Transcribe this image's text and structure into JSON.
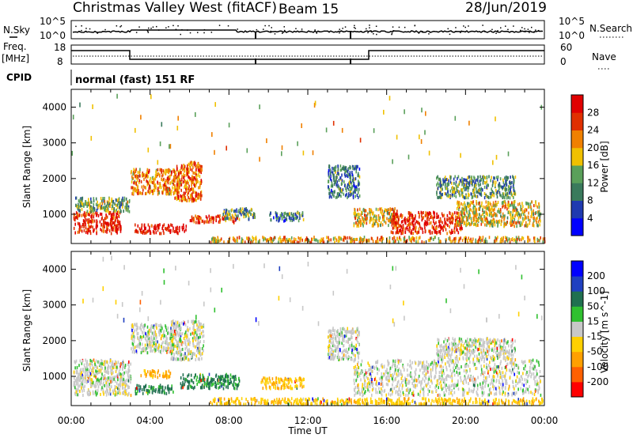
{
  "header": {
    "station": "Christmas Valley West (fitACF)",
    "beam": "Beam 15",
    "date": "28/Jun/2019"
  },
  "left_labels": {
    "nsky": "N.Sky",
    "freq": "Freq.",
    "freq_unit": "[MHz]",
    "cpid": "CPID"
  },
  "right_labels": {
    "nsearch": "N.Search",
    "nave": "Nave"
  },
  "noise_panel": {
    "left_ticks": [
      "10^5",
      "10^0"
    ],
    "right_ticks": [
      "10^5",
      "10^0"
    ]
  },
  "freq_panel": {
    "left_ticks": [
      "18",
      "8"
    ],
    "right_ticks": [
      "60",
      "0"
    ]
  },
  "cpid_text": "normal (fast) 151 RF",
  "colors": {
    "power": [
      "#0000ff",
      "#1f3ab0",
      "#3a7a5c",
      "#5aa05a",
      "#f0c000",
      "#f08000",
      "#e03000",
      "#e00000"
    ],
    "velocity": [
      "#ff0000",
      "#ff6000",
      "#ffa000",
      "#ffd000",
      "#c8c8c8",
      "#30c030",
      "#207050",
      "#2040c0",
      "#0000ff"
    ]
  },
  "chart_data": [
    {
      "type": "heatmap",
      "title": "Power",
      "ylabel": "Slant Range [km]",
      "xlabel": "Time UT",
      "xlim": [
        "00:00",
        "24:00"
      ],
      "ylim": [
        180,
        4500
      ],
      "xticks": [
        "00:00",
        "04:00",
        "08:00",
        "12:00",
        "16:00",
        "20:00",
        "00:00"
      ],
      "yticks": [
        1000,
        2000,
        3000,
        4000
      ],
      "colorbar": {
        "label": "Power [dB]",
        "ticks": [
          4,
          8,
          12,
          16,
          20,
          24,
          28
        ]
      },
      "regions": [
        {
          "t0": 0.1,
          "t1": 2.5,
          "r0": 500,
          "r1": 1100,
          "level": 28
        },
        {
          "t0": 0.2,
          "t1": 3.0,
          "r0": 1100,
          "r1": 1500,
          "level": 14
        },
        {
          "t0": 3.2,
          "t1": 5.8,
          "r0": 500,
          "r1": 750,
          "level": 30
        },
        {
          "t0": 3.0,
          "t1": 5.5,
          "r0": 1600,
          "r1": 2300,
          "level": 22
        },
        {
          "t0": 5.2,
          "t1": 6.6,
          "r0": 1400,
          "r1": 2500,
          "level": 24
        },
        {
          "t0": 6.0,
          "t1": 8.5,
          "r0": 800,
          "r1": 1000,
          "level": 26
        },
        {
          "t0": 7.6,
          "t1": 9.3,
          "r0": 900,
          "r1": 1200,
          "level": 12
        },
        {
          "t0": 10.0,
          "t1": 11.8,
          "r0": 850,
          "r1": 1100,
          "level": 10
        },
        {
          "t0": 13.0,
          "t1": 14.6,
          "r0": 1500,
          "r1": 2400,
          "level": 10
        },
        {
          "t0": 14.3,
          "t1": 16.5,
          "r0": 700,
          "r1": 1200,
          "level": 18
        },
        {
          "t0": 16.2,
          "t1": 19.8,
          "r0": 500,
          "r1": 1100,
          "level": 28
        },
        {
          "t0": 19.5,
          "t1": 23.8,
          "r0": 700,
          "r1": 1400,
          "level": 18
        },
        {
          "t0": 18.5,
          "t1": 22.5,
          "r0": 1500,
          "r1": 2100,
          "level": 12
        },
        {
          "t0": 7.0,
          "t1": 24.0,
          "r0": 250,
          "r1": 400,
          "level": 20
        }
      ]
    },
    {
      "type": "heatmap",
      "title": "Velocity",
      "ylabel": "Slant Range [km]",
      "xlabel": "Time UT",
      "xlim": [
        "00:00",
        "24:00"
      ],
      "ylim": [
        180,
        4500
      ],
      "xticks": [
        "00:00",
        "04:00",
        "08:00",
        "12:00",
        "16:00",
        "20:00",
        "00:00"
      ],
      "yticks": [
        1000,
        2000,
        3000,
        4000
      ],
      "colorbar": {
        "label": "Velocity [m s^-1]",
        "ticks": [
          200,
          100,
          50,
          15,
          -15,
          -50,
          -100,
          -200
        ]
      },
      "regions": [
        {
          "t0": 0.1,
          "t1": 3.0,
          "r0": 500,
          "r1": 1500,
          "vel": 0
        },
        {
          "t0": 3.0,
          "t1": 5.2,
          "r0": 1700,
          "r1": 2500,
          "vel": 0
        },
        {
          "t0": 5.0,
          "t1": 6.7,
          "r0": 1500,
          "r1": 2600,
          "vel": 0
        },
        {
          "t0": 3.2,
          "t1": 5.2,
          "r0": 550,
          "r1": 800,
          "vel": 60
        },
        {
          "t0": 5.5,
          "t1": 8.5,
          "r0": 700,
          "r1": 1100,
          "vel": 60
        },
        {
          "t0": 3.5,
          "t1": 5.0,
          "r0": 1000,
          "r1": 1200,
          "vel": -60
        },
        {
          "t0": 9.6,
          "t1": 11.8,
          "r0": 700,
          "r1": 1000,
          "vel": -40
        },
        {
          "t0": 13.0,
          "t1": 14.6,
          "r0": 1500,
          "r1": 2400,
          "vel": 0
        },
        {
          "t0": 14.3,
          "t1": 23.8,
          "r0": 500,
          "r1": 1500,
          "vel": 0
        },
        {
          "t0": 18.5,
          "t1": 22.5,
          "r0": 1500,
          "r1": 2100,
          "vel": 0
        },
        {
          "t0": 7.0,
          "t1": 24.0,
          "r0": 250,
          "r1": 420,
          "vel": -40
        }
      ]
    }
  ]
}
